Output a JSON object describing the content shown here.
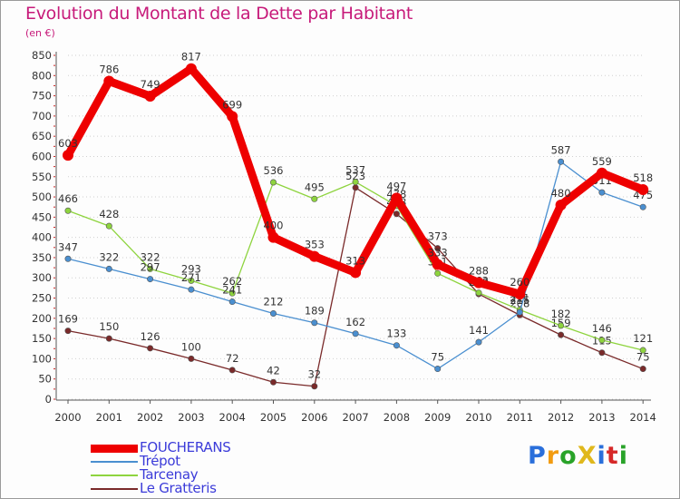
{
  "header": {
    "title": "Evolution du Montant de la Dette par Habitant",
    "unit": "(en €)"
  },
  "logo": {
    "text": "ProXiti",
    "letter_colors": [
      "#2a6fdb",
      "#f29c11",
      "#29a329",
      "#e0b81c",
      "#2a6fdb",
      "#d62828",
      "#29a329"
    ]
  },
  "colors": {
    "title": "#c71a7a",
    "axis": "#555555",
    "grid": "#d0d0d0",
    "legend_text": "#3b3bd9"
  },
  "chart_data": {
    "type": "line",
    "title": "Evolution du Montant de la Dette par Habitant",
    "ylabel": "(en €)",
    "xlabel": "",
    "x": [
      "2000",
      "2001",
      "2002",
      "2003",
      "2004",
      "2005",
      "2006",
      "2007",
      "2008",
      "2009",
      "2010",
      "2011",
      "2012",
      "2013",
      "2014"
    ],
    "ylim": [
      0,
      850
    ],
    "yticks": [
      0,
      50,
      100,
      150,
      200,
      250,
      300,
      350,
      400,
      450,
      500,
      550,
      600,
      650,
      700,
      750,
      800,
      850
    ],
    "grid": "horizontal dotted",
    "legend_position": "bottom-left",
    "series": [
      {
        "name": "Le Gratteris",
        "color": "#7a2a2a",
        "marker": true,
        "values": [
          169,
          150,
          126,
          100,
          72,
          42,
          32,
          523,
          458,
          373,
          260,
          208,
          159,
          115,
          75
        ],
        "labels": [
          "169",
          "150",
          "126",
          "100",
          "72",
          "42",
          "32",
          "523",
          "458",
          "373",
          "260",
          "208",
          "159",
          "115",
          "75"
        ]
      },
      {
        "name": "Tarcenay",
        "color": "#8ed43e",
        "marker": true,
        "values": [
          466,
          428,
          322,
          293,
          262,
          536,
          495,
          537,
          478,
          311,
          263,
          221,
          182,
          146,
          121
        ],
        "labels": [
          "466",
          "428",
          "322",
          "293",
          "262",
          "536",
          "495",
          "537",
          "478",
          "311",
          "263",
          "221",
          "182",
          "146",
          "121"
        ]
      },
      {
        "name": "Trépot",
        "color": "#4a8fd0",
        "marker": true,
        "values": [
          347,
          322,
          297,
          271,
          241,
          212,
          189,
          162,
          133,
          75,
          141,
          215,
          587,
          511,
          475
        ],
        "labels": [
          "347",
          "322",
          "297",
          "271",
          "241",
          "212",
          "189",
          "162",
          "133",
          "75",
          "141",
          "215",
          "587",
          "511",
          "475"
        ]
      },
      {
        "name": "FOUCHERANS",
        "color": "#ee0000",
        "marker": true,
        "thick": true,
        "values": [
          603,
          786,
          749,
          817,
          699,
          400,
          353,
          313,
          497,
          333,
          288,
          260,
          480,
          559,
          518
        ],
        "labels": [
          "603",
          "786",
          "749",
          "817",
          "699",
          "400",
          "353",
          "313",
          "497",
          "333",
          "288",
          "260",
          "480",
          "559",
          "518"
        ]
      }
    ]
  },
  "legend": {
    "items": [
      {
        "name": "FOUCHERANS",
        "color": "#ee0000",
        "thick": true
      },
      {
        "name": "Trépot",
        "color": "#4a8fd0",
        "thick": false
      },
      {
        "name": "Tarcenay",
        "color": "#8ed43e",
        "thick": false
      },
      {
        "name": "Le Gratteris",
        "color": "#7a2a2a",
        "thick": false
      }
    ]
  }
}
